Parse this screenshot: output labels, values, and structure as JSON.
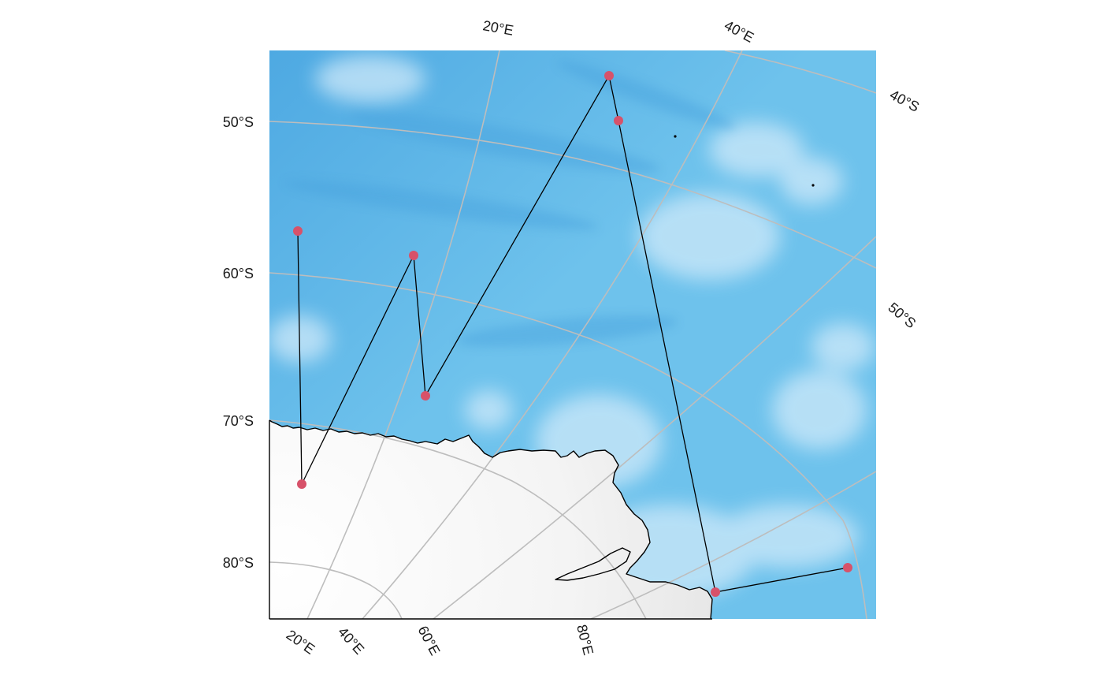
{
  "map": {
    "projection": "polar-stereographic-south",
    "background": {
      "ocean_color": "#6ec2ec",
      "deep_ocean_color": "#4ea9e2",
      "shallow_color": "#cde9f8",
      "ice_color": "#f3f3f3"
    },
    "graticule_color": "#bdbdbd",
    "left_axis_labels": [
      "50°S",
      "60°S",
      "70°S",
      "80°S"
    ],
    "bottom_axis_labels": [
      "20°E",
      "40°E",
      "60°E",
      "80°E"
    ],
    "top_axis_labels": [
      "20°E",
      "40°E"
    ],
    "right_axis_labels": [
      "40°S",
      "50°S"
    ],
    "track_color": "#000000",
    "point_color": "#d7526a",
    "track_points": [
      {
        "id": "p1"
      },
      {
        "id": "p2"
      },
      {
        "id": "p3"
      },
      {
        "id": "p4"
      },
      {
        "id": "p5"
      },
      {
        "id": "p6"
      },
      {
        "id": "p7"
      },
      {
        "id": "p8"
      },
      {
        "id": "p9"
      }
    ]
  }
}
